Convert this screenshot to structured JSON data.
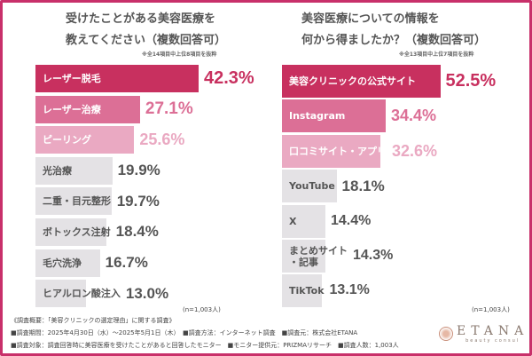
{
  "colors": {
    "top": "#c8305f",
    "second": "#dc6f96",
    "third": "#eaa9c2",
    "grey": "#e4e2e5",
    "frame": "#c8306a",
    "grey_text": "#555555"
  },
  "chart_data": [
    {
      "type": "bar",
      "orientation": "horizontal",
      "title_line1": "受けたことがある美容医療を",
      "title_line2": "教えてください（複数回答可）",
      "note": "※全14項目中上位8項目を抜粋",
      "sample": "(n=1,003人)",
      "categories": [
        "レーザー脱毛",
        "レーザー治療",
        "ピーリング",
        "光治療",
        "二重・目元整形",
        "ボトックス注射",
        "毛穴洗浄",
        "ヒアルロン酸注入"
      ],
      "values": [
        42.3,
        27.1,
        25.6,
        19.9,
        19.7,
        18.4,
        16.7,
        13.0
      ],
      "labels": [
        "42.3%",
        "27.1%",
        "25.6%",
        "19.9%",
        "19.7%",
        "18.4%",
        "16.7%",
        "13.0%"
      ]
    },
    {
      "type": "bar",
      "orientation": "horizontal",
      "title_line1": "美容医療についての情報を",
      "title_line2": "何から得ましたか？（複数回答可）",
      "note": "※全13項目中上位7項目を抜粋",
      "sample": "(n=1,003人)",
      "categories": [
        "美容クリニックの公式サイト",
        "Instagram",
        "口コミサイト・アプリ",
        "YouTube",
        "X",
        "まとめサイト\n・記事",
        "TikTok"
      ],
      "values": [
        52.5,
        34.4,
        32.6,
        18.1,
        14.4,
        14.3,
        13.1
      ],
      "labels": [
        "52.5%",
        "34.4%",
        "32.6%",
        "18.1%",
        "14.4%",
        "14.3%",
        "13.1%"
      ]
    }
  ],
  "footer": {
    "line1": "《調査概要：「美容クリニックの選定理由」に関する調査》",
    "line2": "■調査期間：2025年4月30日（水）～2025年5月1日（木）　■調査方法：インターネット調査　■調査元：株式会社ETANA",
    "line3": "■調査対象：調査回答時に美容医療を受けたことがあると回答したモニター　■モニター提供元：PRIZMAリサーチ　■調査人数：1,003人"
  },
  "logo": {
    "name": "ETANA",
    "tagline": "beauty consul"
  }
}
